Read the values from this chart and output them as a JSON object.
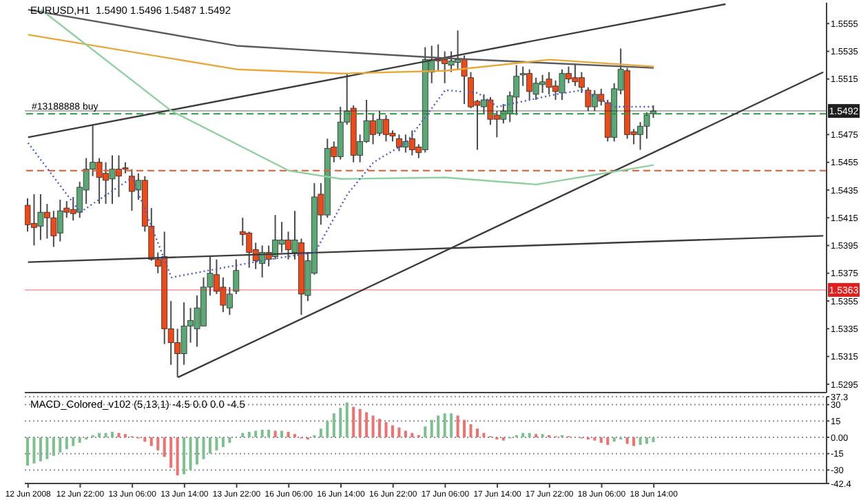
{
  "chart_data": [
    {
      "type": "candlestick",
      "title": "EURUSD,H1  1.5490 1.5496 1.5487 1.5492",
      "tick_labels": "y",
      "ohlc": [
        [
          1.5424,
          1.5429,
          1.5405,
          1.541
        ],
        [
          1.5411,
          1.5432,
          1.5395,
          1.5408
        ],
        [
          1.5409,
          1.5432,
          1.5399,
          1.5419
        ],
        [
          1.5419,
          1.5425,
          1.54,
          1.5415
        ],
        [
          1.5415,
          1.542,
          1.5394,
          1.5402
        ],
        [
          1.5404,
          1.5428,
          1.5398,
          1.542
        ],
        [
          1.5422,
          1.5427,
          1.5415,
          1.5419
        ],
        [
          1.5421,
          1.543,
          1.5413,
          1.5418
        ],
        [
          1.5419,
          1.5441,
          1.5415,
          1.5437
        ],
        [
          1.5435,
          1.5458,
          1.5425,
          1.545
        ],
        [
          1.545,
          1.5482,
          1.5445,
          1.5455
        ],
        [
          1.5455,
          1.5458,
          1.5425,
          1.5444
        ],
        [
          1.5447,
          1.5455,
          1.5425,
          1.5442
        ],
        [
          1.5443,
          1.546,
          1.5425,
          1.545
        ],
        [
          1.545,
          1.546,
          1.543,
          1.5445
        ],
        [
          1.5451,
          1.5455,
          1.5447,
          1.545
        ],
        [
          1.5445,
          1.545,
          1.542,
          1.5434
        ],
        [
          1.5435,
          1.5447,
          1.5428,
          1.5442
        ],
        [
          1.5442,
          1.5445,
          1.5405,
          1.5409
        ],
        [
          1.5409,
          1.5422,
          1.5384,
          1.5385
        ],
        [
          1.5385,
          1.539,
          1.5375,
          1.538
        ],
        [
          1.5387,
          1.5405,
          1.5324,
          1.5335
        ],
        [
          1.5335,
          1.5355,
          1.5309,
          1.5325
        ],
        [
          1.5325,
          1.5335,
          1.53,
          1.5317
        ],
        [
          1.5317,
          1.5354,
          1.5309,
          1.5337
        ],
        [
          1.5337,
          1.535,
          1.5325,
          1.5341
        ],
        [
          1.5335,
          1.5359,
          1.5322,
          1.535
        ],
        [
          1.5337,
          1.5372,
          1.5337,
          1.5365
        ],
        [
          1.5365,
          1.5387,
          1.5359,
          1.5375
        ],
        [
          1.5374,
          1.5385,
          1.536,
          1.5362
        ],
        [
          1.5365,
          1.5372,
          1.5347,
          1.5352
        ],
        [
          1.535,
          1.5365,
          1.5345,
          1.536
        ],
        [
          1.5362,
          1.5385,
          1.536,
          1.5377
        ],
        [
          1.5405,
          1.5415,
          1.5395,
          1.5403
        ],
        [
          1.5404,
          1.5405,
          1.5379,
          1.539
        ],
        [
          1.5392,
          1.5397,
          1.5378,
          1.5384
        ],
        [
          1.5382,
          1.5395,
          1.5372,
          1.539
        ],
        [
          1.539,
          1.5395,
          1.538,
          1.5385
        ],
        [
          1.5387,
          1.5417,
          1.5385,
          1.5399
        ],
        [
          1.5396,
          1.5412,
          1.539,
          1.5399
        ],
        [
          1.5399,
          1.5405,
          1.5385,
          1.5392
        ],
        [
          1.539,
          1.542,
          1.5385,
          1.5399
        ],
        [
          1.5397,
          1.54,
          1.5345,
          1.536
        ],
        [
          1.5359,
          1.539,
          1.5355,
          1.5384
        ],
        [
          1.5375,
          1.544,
          1.5374,
          1.543
        ],
        [
          1.5432,
          1.544,
          1.541,
          1.5417
        ],
        [
          1.5417,
          1.5472,
          1.5415,
          1.5465
        ],
        [
          1.5466,
          1.547,
          1.5455,
          1.5459
        ],
        [
          1.5459,
          1.5495,
          1.5457,
          1.5484
        ],
        [
          1.5484,
          1.5519,
          1.5482,
          1.5492
        ],
        [
          1.5494,
          1.5496,
          1.5455,
          1.546
        ],
        [
          1.546,
          1.5475,
          1.5455,
          1.547
        ],
        [
          1.547,
          1.55,
          1.5469,
          1.5485
        ],
        [
          1.5485,
          1.549,
          1.5468,
          1.5475
        ],
        [
          1.5476,
          1.5492,
          1.5474,
          1.5486
        ],
        [
          1.5486,
          1.5489,
          1.547,
          1.5475
        ],
        [
          1.5476,
          1.5478,
          1.547,
          1.5474
        ],
        [
          1.5472,
          1.5475,
          1.5463,
          1.5466
        ],
        [
          1.5466,
          1.5475,
          1.5462,
          1.547
        ],
        [
          1.5472,
          1.5478,
          1.546,
          1.5464
        ],
        [
          1.5466,
          1.5468,
          1.5458,
          1.5462
        ],
        [
          1.5464,
          1.5538,
          1.5462,
          1.5529
        ],
        [
          1.552,
          1.5539,
          1.5512,
          1.5529
        ],
        [
          1.5529,
          1.554,
          1.5521,
          1.5528
        ],
        [
          1.5529,
          1.5535,
          1.5512,
          1.5526
        ],
        [
          1.5525,
          1.5535,
          1.552,
          1.5528
        ],
        [
          1.5527,
          1.555,
          1.5522,
          1.5529
        ],
        [
          1.5529,
          1.5532,
          1.5497,
          1.5517
        ],
        [
          1.5516,
          1.552,
          1.5494,
          1.5495
        ],
        [
          1.5499,
          1.55,
          1.5464,
          1.5496
        ],
        [
          1.5495,
          1.5504,
          1.549,
          1.55
        ],
        [
          1.55,
          1.5502,
          1.5482,
          1.5486
        ],
        [
          1.5489,
          1.5492,
          1.5473,
          1.5486
        ],
        [
          1.5486,
          1.5497,
          1.5483,
          1.5492
        ],
        [
          1.549,
          1.5506,
          1.5484,
          1.5503
        ],
        [
          1.5502,
          1.5525,
          1.5489,
          1.5517
        ],
        [
          1.5518,
          1.5524,
          1.551,
          1.5519
        ],
        [
          1.5519,
          1.5522,
          1.55,
          1.5506
        ],
        [
          1.5504,
          1.5516,
          1.55,
          1.5512
        ],
        [
          1.5511,
          1.5518,
          1.5505,
          1.5513
        ],
        [
          1.5515,
          1.552,
          1.5504,
          1.5509
        ],
        [
          1.551,
          1.5514,
          1.55,
          1.5506
        ],
        [
          1.5505,
          1.5522,
          1.55,
          1.5519
        ],
        [
          1.5519,
          1.5524,
          1.5512,
          1.5515
        ],
        [
          1.5516,
          1.5526,
          1.551,
          1.5513
        ],
        [
          1.5516,
          1.552,
          1.5505,
          1.5509
        ],
        [
          1.5507,
          1.5509,
          1.5492,
          1.5495
        ],
        [
          1.5495,
          1.5507,
          1.5492,
          1.5504
        ],
        [
          1.5504,
          1.5508,
          1.5496,
          1.5499
        ],
        [
          1.5498,
          1.55,
          1.547,
          1.5473
        ],
        [
          1.5473,
          1.5512,
          1.547,
          1.5508
        ],
        [
          1.5507,
          1.5537,
          1.5504,
          1.5522
        ],
        [
          1.5521,
          1.5523,
          1.5472,
          1.5475
        ],
        [
          1.5477,
          1.5479,
          1.5468,
          1.5475
        ],
        [
          1.5475,
          1.5484,
          1.5464,
          1.5481
        ],
        [
          1.5481,
          1.5491,
          1.5472,
          1.5489
        ],
        [
          1.549,
          1.5496,
          1.5487,
          1.5492
        ],
        null,
        null,
        null,
        null,
        null,
        null,
        null,
        null,
        null,
        null,
        null,
        null,
        null,
        null,
        null,
        null,
        null,
        null,
        null,
        null,
        null,
        null,
        null,
        null,
        null,
        null
      ],
      "series": [
        {
          "type": "line",
          "color": "#3c3c3c",
          "values": [
            1.5473,
            null,
            null,
            null,
            null,
            null,
            null,
            null,
            null,
            null,
            null,
            null,
            null,
            null,
            null,
            null,
            null,
            null,
            null,
            null,
            null,
            null,
            null,
            null,
            null,
            null,
            null,
            null,
            null,
            null,
            null,
            null,
            null,
            null,
            null,
            null,
            null,
            null,
            null,
            null,
            null,
            null,
            null,
            null,
            null,
            null,
            null,
            null,
            null,
            null,
            null,
            null,
            null,
            null,
            null,
            null,
            null,
            null,
            null,
            null,
            null,
            null,
            null,
            null,
            null,
            null,
            null,
            null,
            null,
            null,
            null,
            null,
            null,
            null,
            null,
            null,
            null,
            null,
            null,
            null,
            null,
            null,
            null,
            null,
            null,
            null,
            null,
            null,
            null,
            null,
            null,
            null,
            null,
            null,
            null,
            null,
            null,
            null,
            null,
            null,
            null,
            null,
            null,
            null,
            null,
            null,
            null,
            1.5569,
            null,
            null,
            null,
            null,
            null,
            null,
            null,
            null,
            null,
            null,
            null,
            null,
            null,
            null,
            null
          ]
        },
        {
          "type": "line",
          "color": "#3c3c3c",
          "values": [
            null,
            null,
            null,
            null,
            null,
            null,
            null,
            null,
            null,
            null,
            null,
            null,
            null,
            null,
            null,
            null,
            null,
            null,
            null,
            null,
            null,
            null,
            null,
            1.53,
            null,
            null,
            null,
            null,
            null,
            null,
            null,
            null,
            null,
            null,
            null,
            null,
            null,
            null,
            null,
            null,
            null,
            null,
            null,
            null,
            null,
            null,
            null,
            null,
            null,
            null,
            null,
            null,
            null,
            null,
            null,
            null,
            null,
            null,
            null,
            null,
            null,
            null,
            null,
            null,
            null,
            null,
            null,
            null,
            null,
            null,
            null,
            null,
            null,
            null,
            null,
            null,
            null,
            null,
            null,
            null,
            null,
            null,
            null,
            null,
            null,
            null,
            null,
            null,
            null,
            null,
            null,
            null,
            null,
            null,
            null,
            null,
            null,
            null,
            null,
            null,
            null,
            null,
            null,
            null,
            null,
            null,
            null,
            null,
            null,
            null,
            null,
            null,
            null,
            null,
            null,
            null,
            null,
            null,
            null,
            null,
            null,
            null,
            1.552
          ]
        },
        {
          "type": "line",
          "color": "#3c3c3c",
          "values": [
            1.5383,
            null,
            null,
            null,
            null,
            null,
            null,
            null,
            null,
            null,
            null,
            null,
            null,
            null,
            null,
            null,
            null,
            null,
            null,
            null,
            null,
            null,
            null,
            null,
            null,
            null,
            null,
            null,
            null,
            null,
            null,
            null,
            null,
            null,
            null,
            null,
            null,
            null,
            null,
            null,
            null,
            null,
            null,
            null,
            null,
            null,
            null,
            null,
            null,
            null,
            null,
            null,
            null,
            null,
            null,
            null,
            null,
            null,
            null,
            null,
            null,
            null,
            null,
            null,
            null,
            null,
            null,
            null,
            null,
            null,
            null,
            null,
            null,
            null,
            null,
            null,
            null,
            null,
            null,
            null,
            null,
            null,
            null,
            null,
            null,
            null,
            null,
            null,
            null,
            null,
            null,
            null,
            null,
            null,
            null,
            null,
            null,
            null,
            null,
            null,
            null,
            null,
            null,
            null,
            null,
            null,
            null,
            null,
            null,
            null,
            null,
            null,
            null,
            null,
            null,
            null,
            null,
            null,
            null,
            null,
            null,
            null,
            1.5402
          ]
        },
        {
          "type": "line",
          "color": "#5a5a5a",
          "values": [
            1.5565,
            null,
            null,
            null,
            null,
            null,
            null,
            null,
            null,
            null,
            null,
            null,
            null,
            null,
            null,
            null,
            null,
            null,
            null,
            null,
            null,
            null,
            null,
            null,
            null,
            null,
            null,
            null,
            null,
            null,
            null,
            null,
            1.5539,
            null,
            null,
            null,
            null,
            null,
            null,
            null,
            null,
            null,
            null,
            null,
            null,
            null,
            null,
            null,
            null,
            null,
            null,
            null,
            null,
            null,
            null,
            null,
            null,
            null,
            null,
            null,
            null,
            null,
            null,
            null,
            1.553,
            null,
            null,
            null,
            null,
            null,
            null,
            null,
            null,
            null,
            null,
            null,
            null,
            null,
            null,
            null,
            null,
            null,
            null,
            null,
            null,
            null,
            null,
            null,
            null,
            null,
            null,
            null,
            null,
            null,
            null,
            null,
            1.5523,
            null,
            null,
            null,
            null,
            null,
            null,
            null,
            null,
            null,
            null,
            null,
            null,
            null,
            null,
            null,
            null,
            null,
            null,
            null,
            null,
            null,
            null,
            null,
            null,
            null,
            null
          ]
        },
        {
          "type": "line",
          "color": "#e8a838",
          "values": [
            1.5547,
            null,
            null,
            null,
            null,
            null,
            null,
            null,
            null,
            null,
            null,
            null,
            null,
            null,
            null,
            null,
            null,
            null,
            null,
            null,
            null,
            null,
            null,
            null,
            null,
            null,
            null,
            null,
            null,
            null,
            null,
            null,
            1.5522,
            null,
            null,
            null,
            null,
            null,
            null,
            null,
            null,
            null,
            null,
            null,
            null,
            null,
            null,
            null,
            1.5519,
            null,
            null,
            null,
            null,
            null,
            null,
            null,
            null,
            null,
            null,
            null,
            null,
            null,
            null,
            null,
            1.5521,
            null,
            null,
            null,
            null,
            null,
            null,
            null,
            null,
            null,
            null,
            null,
            null,
            null,
            null,
            null,
            1.5529,
            null,
            null,
            null,
            null,
            null,
            null,
            null,
            null,
            null,
            null,
            null,
            null,
            null,
            null,
            null,
            1.5524,
            null,
            null,
            null,
            null,
            null,
            null,
            null,
            null,
            null,
            null,
            null,
            null,
            null,
            null,
            null,
            null,
            null,
            null,
            null,
            null,
            null,
            null,
            null,
            null,
            null,
            null
          ]
        },
        {
          "type": "line",
          "color": "#8fd0a0",
          "values": [
            null,
            null,
            1.5565,
            null,
            null,
            null,
            null,
            null,
            null,
            null,
            null,
            null,
            null,
            null,
            null,
            null,
            null,
            null,
            null,
            null,
            null,
            null,
            1.5492,
            null,
            null,
            null,
            null,
            null,
            null,
            null,
            null,
            null,
            null,
            null,
            null,
            null,
            null,
            null,
            null,
            null,
            1.5449,
            null,
            null,
            null,
            null,
            null,
            null,
            null,
            1.5443,
            null,
            null,
            null,
            null,
            null,
            null,
            null,
            null,
            null,
            null,
            null,
            null,
            null,
            null,
            null,
            1.5444,
            null,
            null,
            null,
            null,
            null,
            null,
            null,
            null,
            null,
            null,
            null,
            null,
            null,
            1.5439,
            null,
            null,
            null,
            null,
            null,
            null,
            null,
            null,
            null,
            null,
            null,
            null,
            null,
            null,
            null,
            null,
            null,
            1.5453,
            null,
            null,
            null,
            null,
            null,
            null,
            null,
            null,
            null,
            null,
            null,
            null,
            null,
            null,
            null,
            null,
            null,
            null,
            null,
            null,
            null,
            null,
            null,
            null,
            null,
            null
          ]
        },
        {
          "type": "line",
          "color": "#4a5ad8",
          "line_style": "dotted",
          "values": [
            1.5469,
            null,
            null,
            null,
            null,
            null,
            null,
            null,
            1.5419,
            null,
            null,
            null,
            null,
            null,
            null,
            null,
            1.5444,
            null,
            null,
            null,
            null,
            null,
            1.5372,
            null,
            null,
            null,
            null,
            null,
            null,
            null,
            1.5379,
            null,
            null,
            null,
            null,
            null,
            null,
            1.5385,
            null,
            null,
            null,
            null,
            null,
            null,
            1.539,
            null,
            null,
            null,
            null,
            1.5432,
            null,
            null,
            null,
            1.5455,
            null,
            null,
            null,
            null,
            1.5469,
            null,
            null,
            null,
            null,
            null,
            1.5507,
            null,
            null,
            null,
            null,
            1.5505,
            null,
            null,
            1.5495,
            null,
            null,
            null,
            null,
            null,
            null,
            null,
            null,
            1.5504,
            null,
            null,
            null,
            1.5507,
            null,
            null,
            null,
            null,
            1.5495,
            null,
            null,
            null,
            null,
            null,
            1.5495,
            null,
            null,
            null,
            null,
            null,
            null,
            null,
            null,
            null,
            null,
            null,
            null,
            null,
            null,
            null,
            null,
            null,
            null,
            null,
            null,
            null,
            null,
            null,
            null,
            null,
            null
          ]
        }
      ],
      "ylim": [
        1.5289,
        1.557
      ],
      "yticks": [
        1.5555,
        1.5535,
        1.5515,
        1.5475,
        1.5455,
        1.5435,
        1.5415,
        1.5395,
        1.5375,
        1.5355,
        1.5335,
        1.5315,
        1.5295
      ],
      "ref_lines": [
        {
          "axis": "y",
          "value": 1.5492,
          "label": "1.5492",
          "color": "#202020"
        },
        {
          "axis": "y",
          "value": 1.549,
          "label": "#13188888 buy",
          "color": "#2a9a3a",
          "line_style": "dashed"
        },
        {
          "axis": "y",
          "value": 1.5449,
          "color": "#e05a30",
          "line_style": "dashed"
        },
        {
          "axis": "y",
          "value": 1.5363,
          "label": "1.5363",
          "color": "#e02020"
        }
      ]
    },
    {
      "type": "bar",
      "title": "MACD_Colored_v102 (5,13,1) -4.5 0.0 0.0 -4.5",
      "categories": [
        "12 Jun 2008",
        null,
        null,
        null,
        null,
        null,
        null,
        null,
        "12 Jun 22:00",
        null,
        null,
        null,
        null,
        null,
        null,
        null,
        "13 Jun 06:00",
        null,
        null,
        null,
        null,
        null,
        null,
        null,
        "13 Jun 14:00",
        null,
        null,
        null,
        null,
        null,
        null,
        null,
        "13 Jun 22:00",
        null,
        null,
        null,
        null,
        null,
        null,
        null,
        "16 Jun 06:00",
        null,
        null,
        null,
        null,
        null,
        null,
        null,
        "16 Jun 14:00",
        null,
        null,
        null,
        null,
        null,
        null,
        null,
        "16 Jun 22:00",
        null,
        null,
        null,
        null,
        null,
        null,
        null,
        "17 Jun 06:00",
        null,
        null,
        null,
        null,
        null,
        null,
        null,
        "17 Jun 14:00",
        null,
        null,
        null,
        null,
        null,
        null,
        null,
        "17 Jun 22:00",
        null,
        null,
        null,
        null,
        null,
        null,
        null,
        "18 Jun 06:00",
        null,
        null,
        null,
        null,
        null,
        null,
        null,
        "18 Jun 14:00",
        null,
        null,
        null,
        null,
        null,
        null,
        null,
        null,
        null,
        null,
        null,
        null,
        null,
        null,
        null,
        null,
        null,
        null,
        null,
        null,
        null,
        null,
        null,
        null,
        null,
        null
      ],
      "values": [
        -26,
        -24,
        -22,
        -20,
        -17,
        -14,
        -11,
        -8,
        -5,
        -2,
        2,
        4,
        4,
        5,
        4,
        3,
        1,
        -1,
        -4,
        -8,
        -12,
        -18,
        -28,
        -35,
        -34,
        -30,
        -25,
        -20,
        -15,
        -12,
        -9,
        -5,
        0,
        4,
        5,
        6,
        7,
        7,
        6,
        6,
        5,
        3,
        -1,
        -2,
        2,
        8,
        15,
        22,
        27,
        32,
        28,
        26,
        23,
        20,
        17,
        14,
        11,
        9,
        6,
        4,
        2,
        10,
        16,
        20,
        22,
        22,
        20,
        16,
        12,
        8,
        4,
        1,
        -2,
        -3,
        -1,
        2,
        4,
        4,
        3,
        3,
        2,
        1,
        2,
        1,
        0,
        -1,
        -2,
        -3,
        -5,
        -7,
        -4,
        -2,
        -6,
        -8,
        -7,
        -6,
        -4.5,
        null,
        null,
        null,
        null,
        null,
        null,
        null,
        null,
        null,
        null,
        null,
        null,
        null,
        null,
        null,
        null,
        null,
        null,
        null,
        null,
        null,
        null,
        null,
        null,
        null,
        null
      ],
      "colors": [
        "#7cc08e",
        "#7cc08e",
        "#7cc08e",
        "#7cc08e",
        "#7cc08e",
        "#7cc08e",
        "#7cc08e",
        "#7cc08e",
        "#7cc08e",
        "#7cc08e",
        "#7cc08e",
        "#7cc08e",
        "#7cc08e",
        "#7cc08e",
        "#f07070",
        "#f07070",
        "#f07070",
        "#f07070",
        "#f07070",
        "#f07070",
        "#f07070",
        "#f07070",
        "#f07070",
        "#f07070",
        "#7cc08e",
        "#7cc08e",
        "#7cc08e",
        "#7cc08e",
        "#7cc08e",
        "#7cc08e",
        "#7cc08e",
        "#7cc08e",
        "#7cc08e",
        "#7cc08e",
        "#7cc08e",
        "#7cc08e",
        "#7cc08e",
        "#7cc08e",
        "#f07070",
        "#7cc08e",
        "#f07070",
        "#f07070",
        "#f07070",
        "#f07070",
        "#7cc08e",
        "#7cc08e",
        "#7cc08e",
        "#7cc08e",
        "#7cc08e",
        "#7cc08e",
        "#f07070",
        "#f07070",
        "#f07070",
        "#f07070",
        "#f07070",
        "#f07070",
        "#f07070",
        "#f07070",
        "#f07070",
        "#f07070",
        "#f07070",
        "#7cc08e",
        "#7cc08e",
        "#7cc08e",
        "#7cc08e",
        "#7cc08e",
        "#f07070",
        "#f07070",
        "#f07070",
        "#f07070",
        "#f07070",
        "#f07070",
        "#f07070",
        "#f07070",
        "#7cc08e",
        "#7cc08e",
        "#7cc08e",
        "#7cc08e",
        "#f07070",
        "#7cc08e",
        "#f07070",
        "#f07070",
        "#7cc08e",
        "#f07070",
        "#f07070",
        "#f07070",
        "#f07070",
        "#f07070",
        "#f07070",
        "#f07070",
        "#7cc08e",
        "#7cc08e",
        "#f07070",
        "#f07070",
        "#7cc08e",
        "#7cc08e",
        "#7cc08e",
        null,
        null,
        null,
        null,
        null,
        null,
        null,
        null,
        null,
        null,
        null,
        null,
        null,
        null,
        null,
        null,
        null,
        null,
        null,
        null,
        null,
        null,
        null,
        null,
        null,
        null
      ],
      "ylim": [
        -42.4,
        37.3
      ],
      "yticks": [
        37.3,
        30,
        15,
        {
          "value": 0,
          "label": "0.00"
        },
        -15,
        -30,
        -42.4
      ],
      "grid": "y"
    }
  ]
}
